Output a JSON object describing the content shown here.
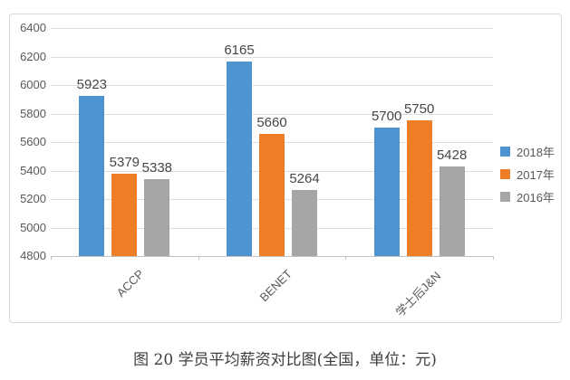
{
  "chart_data": {
    "type": "bar",
    "title": "图 20 学员平均薪资对比图(全国，单位：元)",
    "categories": [
      "ACCP",
      "BENET",
      "学士后J&N"
    ],
    "series": [
      {
        "name": "2018年",
        "color": "#4d94d0",
        "values": [
          5923,
          6165,
          5700
        ]
      },
      {
        "name": "2017年",
        "color": "#ee7d28",
        "values": [
          5379,
          5660,
          5750
        ]
      },
      {
        "name": "2016年",
        "color": "#a6a6a6",
        "values": [
          5338,
          5264,
          5428
        ]
      }
    ],
    "ylim": [
      4800,
      6400
    ],
    "ytick_step": 200,
    "yticks": [
      4800,
      5000,
      5200,
      5400,
      5600,
      5800,
      6000,
      6200,
      6400
    ],
    "grid": true,
    "data_labels": true,
    "legend_position": "right",
    "category_label_rotation": -45,
    "gridline_color": "#dddddd",
    "axis_line_color": "#c2c2c2",
    "label_text_color": "#595959"
  }
}
